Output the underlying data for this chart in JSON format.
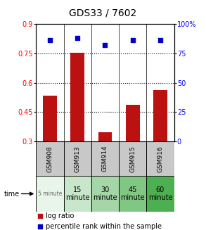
{
  "title": "GDS33 / 7602",
  "samples": [
    "GSM908",
    "GSM913",
    "GSM914",
    "GSM915",
    "GSM916"
  ],
  "time_labels_line1": [
    "5 minute",
    "15",
    "30",
    "45",
    "60"
  ],
  "time_labels_line2": [
    "",
    "minute",
    "minute",
    "minute",
    "minute"
  ],
  "log_ratio": [
    0.535,
    0.752,
    0.347,
    0.488,
    0.562
  ],
  "percentile_rank": [
    86.5,
    88.5,
    82.5,
    86.5,
    86.5
  ],
  "bar_color": "#bb1111",
  "scatter_color": "#0000cc",
  "ylim_left": [
    0.3,
    0.9
  ],
  "ylim_right": [
    0,
    100
  ],
  "yticks_left": [
    0.3,
    0.45,
    0.6,
    0.75,
    0.9
  ],
  "yticks_right": [
    0,
    25,
    50,
    75,
    100
  ],
  "ytick_labels_left": [
    "0.3",
    "0.45",
    "0.6",
    "0.75",
    "0.9"
  ],
  "ytick_labels_right": [
    "0",
    "25",
    "50",
    "75",
    "100%"
  ],
  "hlines": [
    0.45,
    0.6,
    0.75
  ],
  "sample_bg_color": "#c8c8c8",
  "time_bg_colors": [
    "#e8f5e9",
    "#c8e6c9",
    "#a5d6a7",
    "#81c784",
    "#4caf50"
  ],
  "bar_bottom": 0.3
}
